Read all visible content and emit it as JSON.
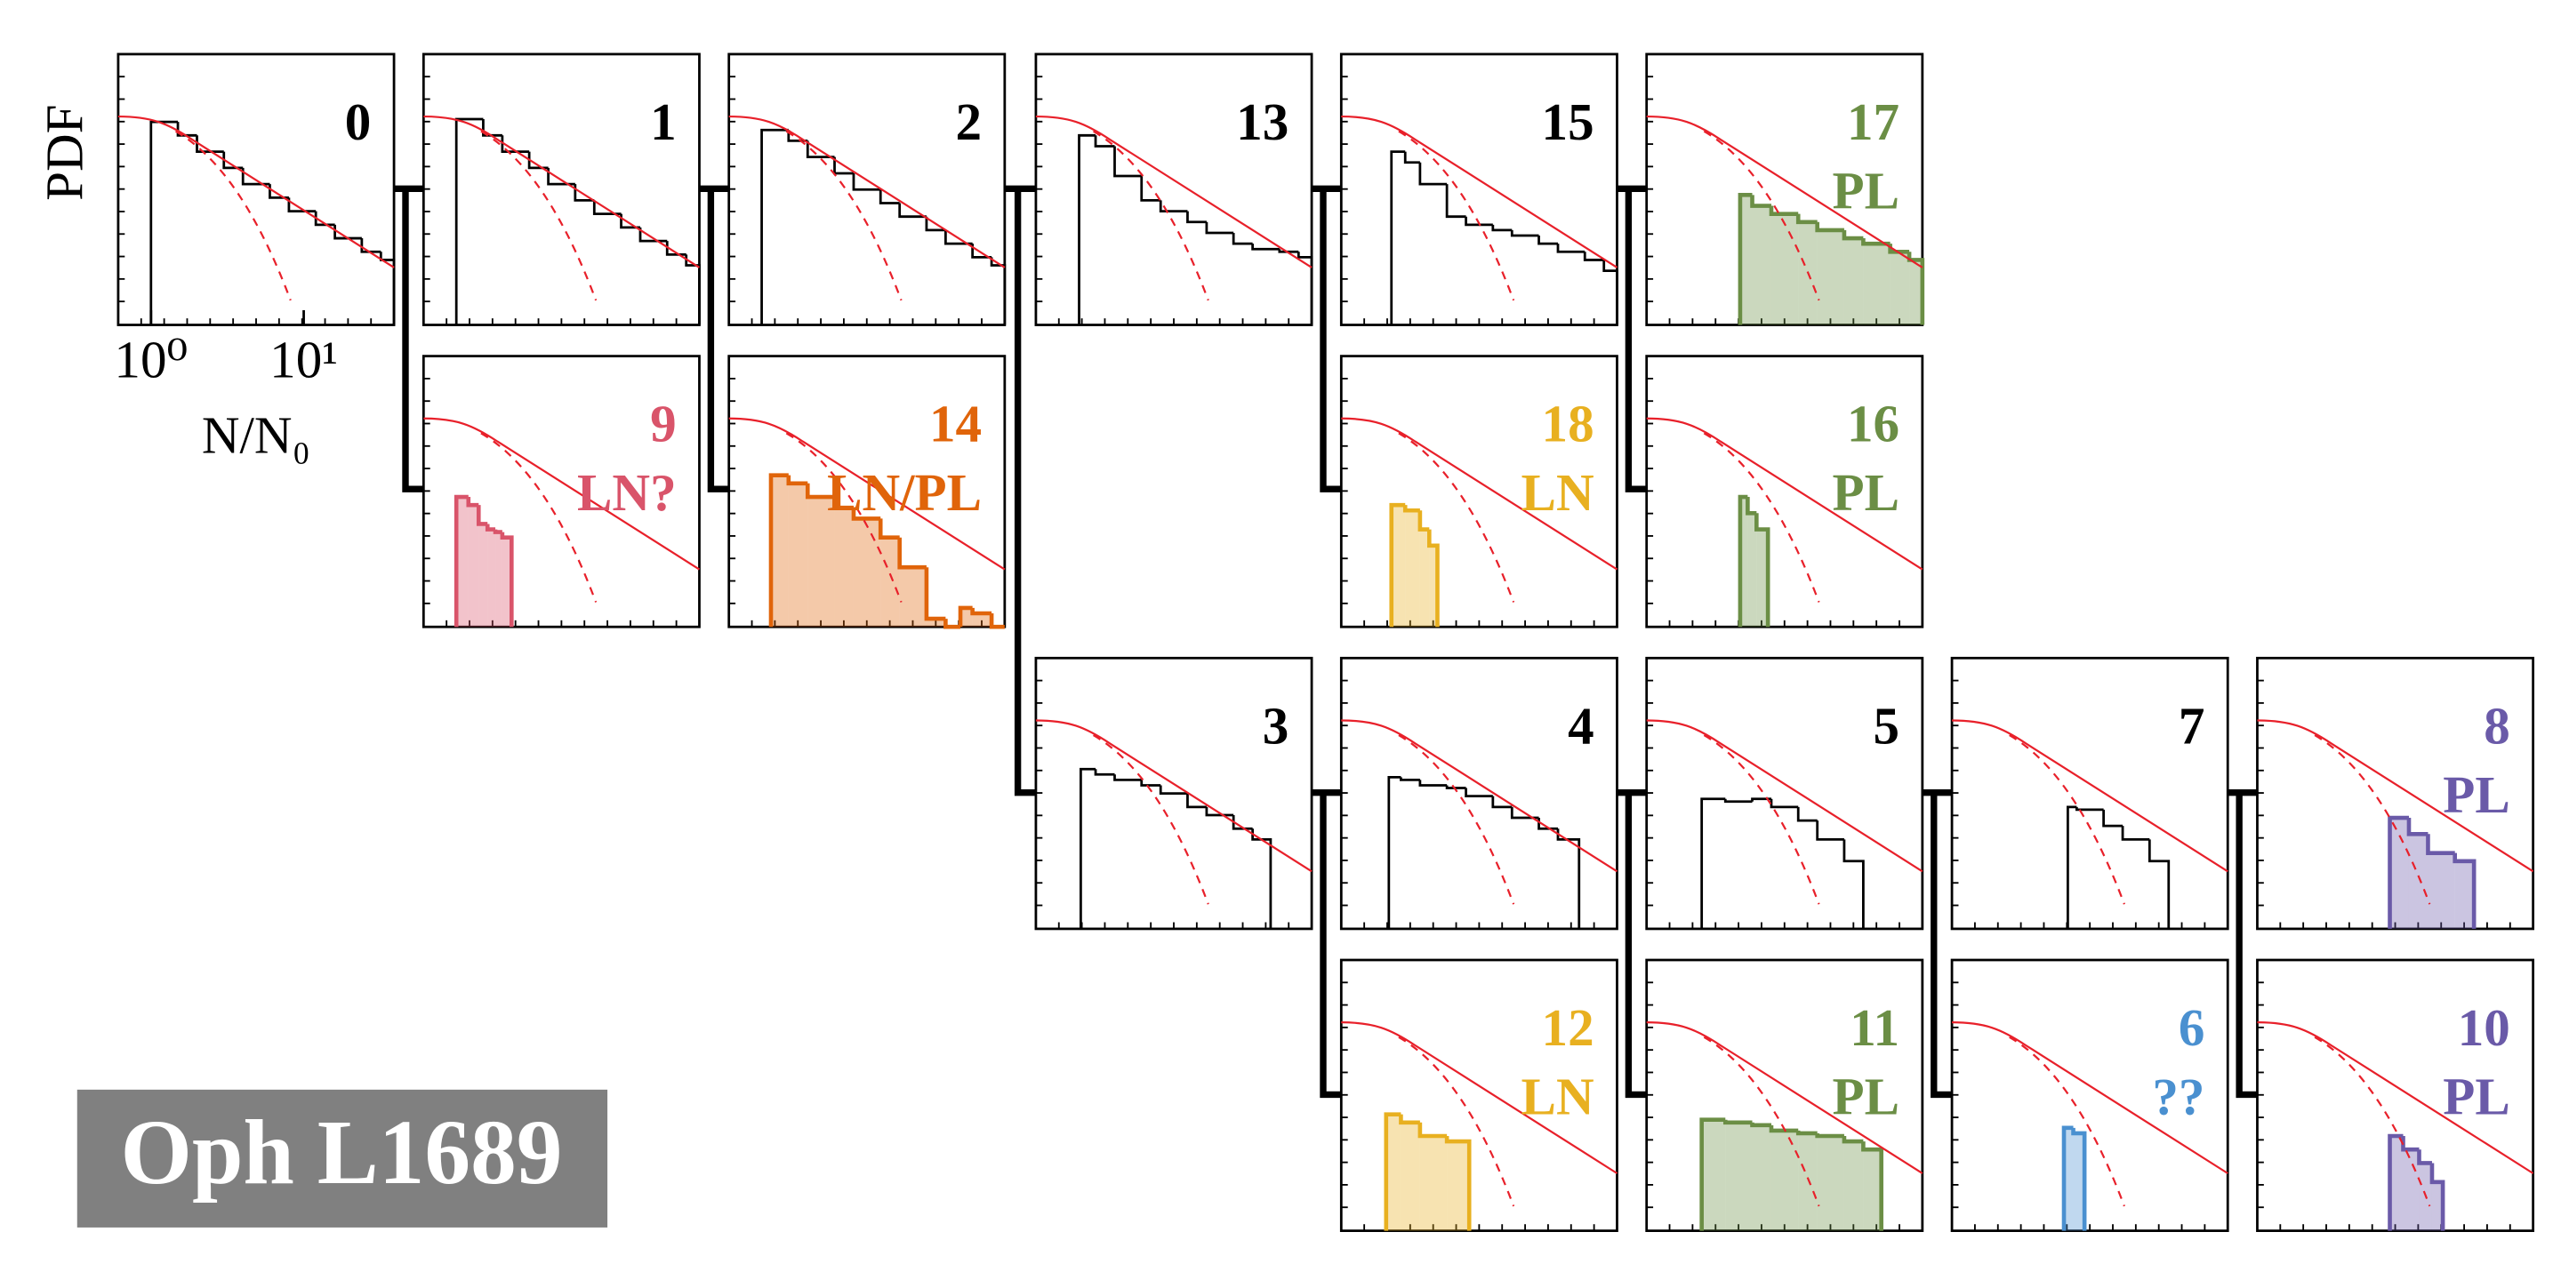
{
  "figure_label": "Oph L1689",
  "chart_data": [
    {
      "type": "histogram",
      "title": "0",
      "color": "#000000",
      "filled": false,
      "xscale": "log",
      "xlim": [
        0.61,
        39
      ],
      "ylim": [
        0,
        1
      ],
      "ylabel": "PDF",
      "xlabel": "N/N₀",
      "xticks": [
        {
          "value": 1,
          "label": "10⁰"
        },
        {
          "value": 10,
          "label": "10¹"
        }
      ],
      "bins": [
        1,
        1.5,
        2,
        3,
        4,
        6,
        8,
        12,
        16,
        24,
        32,
        39
      ],
      "values": [
        0.75,
        0.7,
        0.64,
        0.58,
        0.52,
        0.47,
        0.42,
        0.37,
        0.32,
        0.27,
        0.24
      ]
    },
    {
      "type": "histogram",
      "title": "1",
      "color": "#000000",
      "filled": false,
      "xscale": "log",
      "xlim": [
        0.61,
        39
      ],
      "ylim": [
        0,
        1
      ],
      "bins": [
        1,
        1.5,
        2,
        3,
        4,
        6,
        8,
        12,
        16,
        24,
        32,
        39
      ],
      "values": [
        0.76,
        0.7,
        0.64,
        0.58,
        0.52,
        0.46,
        0.41,
        0.36,
        0.31,
        0.26,
        0.22
      ]
    },
    {
      "type": "histogram",
      "title": "2",
      "color": "#000000",
      "filled": false,
      "xscale": "log",
      "xlim": [
        0.61,
        39
      ],
      "ylim": [
        0,
        1
      ],
      "bins": [
        1,
        1.5,
        2,
        3,
        4,
        6,
        8,
        12,
        16,
        24,
        32,
        39
      ],
      "values": [
        0.72,
        0.68,
        0.62,
        0.56,
        0.5,
        0.45,
        0.4,
        0.35,
        0.3,
        0.25,
        0.22
      ]
    },
    {
      "type": "histogram",
      "title": "13",
      "color": "#000000",
      "filled": false,
      "xscale": "log",
      "xlim": [
        0.61,
        39
      ],
      "ylim": [
        0,
        1
      ],
      "bins": [
        1.17,
        1.5,
        2,
        3,
        4,
        6,
        8,
        12,
        16,
        24,
        32,
        39
      ],
      "values": [
        0.7,
        0.66,
        0.55,
        0.46,
        0.42,
        0.38,
        0.34,
        0.3,
        0.28,
        0.27,
        0.25
      ]
    },
    {
      "type": "histogram",
      "title": "15",
      "color": "#000000",
      "filled": false,
      "xscale": "log",
      "xlim": [
        0.61,
        39
      ],
      "ylim": [
        0,
        1
      ],
      "bins": [
        1.3,
        1.6,
        2,
        3,
        4,
        6,
        8,
        12,
        16,
        24,
        32,
        39
      ],
      "values": [
        0.64,
        0.6,
        0.52,
        0.4,
        0.37,
        0.35,
        0.33,
        0.3,
        0.27,
        0.24,
        0.2
      ]
    },
    {
      "type": "histogram",
      "title": "17",
      "annotation": "PL",
      "color": "#6b8e45",
      "filled": true,
      "xscale": "log",
      "xlim": [
        0.61,
        39
      ],
      "ylim": [
        0,
        1
      ],
      "bins": [
        2.5,
        3,
        4,
        6,
        8,
        12,
        16,
        24,
        32,
        39
      ],
      "values": [
        0.48,
        0.44,
        0.41,
        0.38,
        0.35,
        0.32,
        0.3,
        0.27,
        0.24
      ]
    },
    {
      "type": "histogram",
      "title": "9",
      "annotation": "LN?",
      "color": "#d9546a",
      "filled": true,
      "xscale": "log",
      "xlim": [
        0.61,
        39
      ],
      "ylim": [
        0,
        1
      ],
      "bins": [
        1,
        1.2,
        1.4,
        1.6,
        1.8,
        2.0,
        2.3
      ],
      "values": [
        0.48,
        0.45,
        0.38,
        0.36,
        0.35,
        0.33
      ]
    },
    {
      "type": "histogram",
      "title": "14",
      "annotation": "LN/PL",
      "color": "#e0640a",
      "filled": true,
      "xscale": "log",
      "xlim": [
        0.61,
        39
      ],
      "ylim": [
        0,
        1
      ],
      "bins": [
        1.15,
        1.5,
        2,
        3,
        4,
        6,
        8,
        12,
        16,
        20,
        24,
        32,
        39
      ],
      "values": [
        0.56,
        0.53,
        0.48,
        0.44,
        0.4,
        0.33,
        0.22,
        0.03,
        0,
        0.07,
        0.05,
        0
      ]
    },
    {
      "type": "histogram",
      "title": "18",
      "annotation": "LN",
      "color": "#e8b020",
      "filled": true,
      "xscale": "log",
      "xlim": [
        0.61,
        39
      ],
      "ylim": [
        0,
        1
      ],
      "bins": [
        1.3,
        1.6,
        2,
        2.3,
        2.6
      ],
      "values": [
        0.45,
        0.43,
        0.36,
        0.3
      ]
    },
    {
      "type": "histogram",
      "title": "16",
      "annotation": "PL",
      "color": "#6b8e45",
      "filled": true,
      "xscale": "log",
      "xlim": [
        0.61,
        39
      ],
      "ylim": [
        0,
        1
      ],
      "bins": [
        2.5,
        2.8,
        3.2,
        3.8
      ],
      "values": [
        0.48,
        0.42,
        0.36
      ]
    },
    {
      "type": "histogram",
      "title": "3",
      "color": "#000000",
      "filled": false,
      "xscale": "log",
      "xlim": [
        0.61,
        39
      ],
      "ylim": [
        0,
        1
      ],
      "bins": [
        1.2,
        1.5,
        2,
        3,
        4,
        6,
        8,
        12,
        16,
        21
      ],
      "values": [
        0.59,
        0.57,
        0.55,
        0.53,
        0.5,
        0.45,
        0.42,
        0.37,
        0.33
      ]
    },
    {
      "type": "histogram",
      "title": "4",
      "color": "#000000",
      "filled": false,
      "xscale": "log",
      "xlim": [
        0.61,
        39
      ],
      "ylim": [
        0,
        1
      ],
      "bins": [
        1.25,
        1.5,
        2,
        3,
        4,
        6,
        8,
        12,
        16,
        22
      ],
      "values": [
        0.56,
        0.55,
        0.53,
        0.52,
        0.49,
        0.45,
        0.41,
        0.37,
        0.33
      ]
    },
    {
      "type": "histogram",
      "title": "5",
      "color": "#000000",
      "filled": false,
      "xscale": "log",
      "xlim": [
        0.61,
        39
      ],
      "ylim": [
        0,
        1
      ],
      "bins": [
        1.4,
        2,
        3,
        4,
        6,
        8,
        12,
        16
      ],
      "values": [
        0.48,
        0.47,
        0.48,
        0.45,
        0.4,
        0.33,
        0.25
      ]
    },
    {
      "type": "histogram",
      "title": "7",
      "color": "#000000",
      "filled": false,
      "xscale": "log",
      "xlim": [
        0.61,
        39
      ],
      "ylim": [
        0,
        1
      ],
      "bins": [
        3.5,
        4,
        6,
        8,
        12,
        16
      ],
      "values": [
        0.45,
        0.44,
        0.38,
        0.33,
        0.25
      ]
    },
    {
      "type": "histogram",
      "title": "8",
      "annotation": "PL",
      "color": "#6a5aa8",
      "filled": true,
      "xscale": "log",
      "xlim": [
        0.61,
        39
      ],
      "ylim": [
        0,
        1
      ],
      "bins": [
        4.5,
        6,
        8,
        12,
        16
      ],
      "values": [
        0.41,
        0.35,
        0.28,
        0.25
      ]
    },
    {
      "type": "histogram",
      "title": "12",
      "annotation": "LN",
      "color": "#e8b020",
      "filled": true,
      "xscale": "log",
      "xlim": [
        0.61,
        39
      ],
      "ylim": [
        0,
        1
      ],
      "bins": [
        1.2,
        1.5,
        2,
        3,
        4.2
      ],
      "values": [
        0.43,
        0.4,
        0.35,
        0.33
      ]
    },
    {
      "type": "histogram",
      "title": "11",
      "annotation": "PL",
      "color": "#6b8e45",
      "filled": true,
      "xscale": "log",
      "xlim": [
        0.61,
        39
      ],
      "ylim": [
        0,
        1
      ],
      "bins": [
        1.4,
        2,
        3,
        4,
        6,
        8,
        12,
        16,
        21
      ],
      "values": [
        0.41,
        0.4,
        0.39,
        0.37,
        0.36,
        0.35,
        0.33,
        0.3
      ]
    },
    {
      "type": "histogram",
      "title": "6",
      "annotation": "??",
      "color": "#4a90d0",
      "filled": true,
      "xscale": "log",
      "xlim": [
        0.61,
        39
      ],
      "ylim": [
        0,
        1
      ],
      "bins": [
        3.3,
        3.8,
        4.5
      ],
      "values": [
        0.38,
        0.36
      ]
    },
    {
      "type": "histogram",
      "title": "10",
      "annotation": "PL",
      "color": "#6a5aa8",
      "filled": true,
      "xscale": "log",
      "xlim": [
        0.61,
        39
      ],
      "ylim": [
        0,
        1
      ],
      "bins": [
        4.5,
        5.5,
        7,
        8.5,
        10
      ],
      "values": [
        0.35,
        0.3,
        0.25,
        0.18
      ]
    }
  ]
}
